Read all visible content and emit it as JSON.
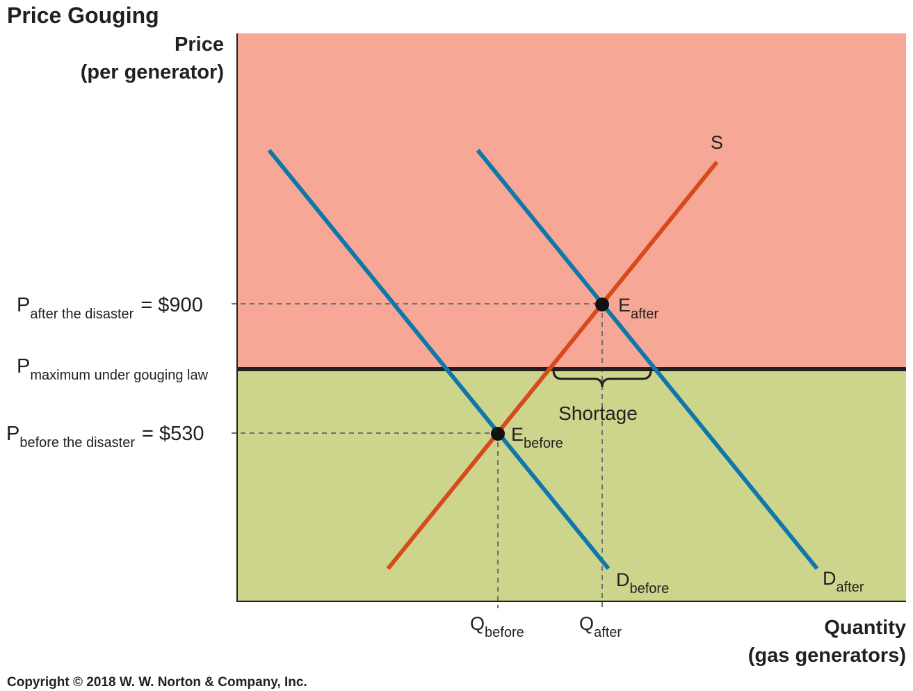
{
  "chart_data": {
    "type": "line",
    "title": "Price Gouging",
    "ylabel_line1": "Price",
    "ylabel_line2": "(per generator)",
    "xlabel_line1": "Quantity",
    "xlabel_line2": "(gas generators)",
    "copyright": "Copyright © 2018 W. W. Norton & Company, Inc.",
    "colors": {
      "above_max": "#f6a795",
      "below_max": "#cdd58c",
      "supply": "#d64a1c",
      "demand": "#0f77a9",
      "max_line": "#231f20"
    },
    "price_labels": {
      "p_after_main": "P",
      "p_after_sub": "after the disaster",
      "p_after_value": "= $900",
      "p_max_main": "P",
      "p_max_sub": "maximum under gouging law",
      "p_before_main": "P",
      "p_before_sub": "before the disaster",
      "p_before_value": "= $530"
    },
    "quantity_labels": {
      "q_before_main": "Q",
      "q_before_sub": "before",
      "q_after_main": "Q",
      "q_after_sub": "after"
    },
    "curve_labels": {
      "supply": "S",
      "d_before_main": "D",
      "d_before_sub": "before",
      "d_after_main": "D",
      "d_after_sub": "after"
    },
    "point_labels": {
      "e_before_main": "E",
      "e_before_sub": "before",
      "e_after_main": "E",
      "e_after_sub": "after"
    },
    "shortage_label": "Shortage",
    "values": {
      "p_before": 530,
      "p_after": 900
    }
  }
}
